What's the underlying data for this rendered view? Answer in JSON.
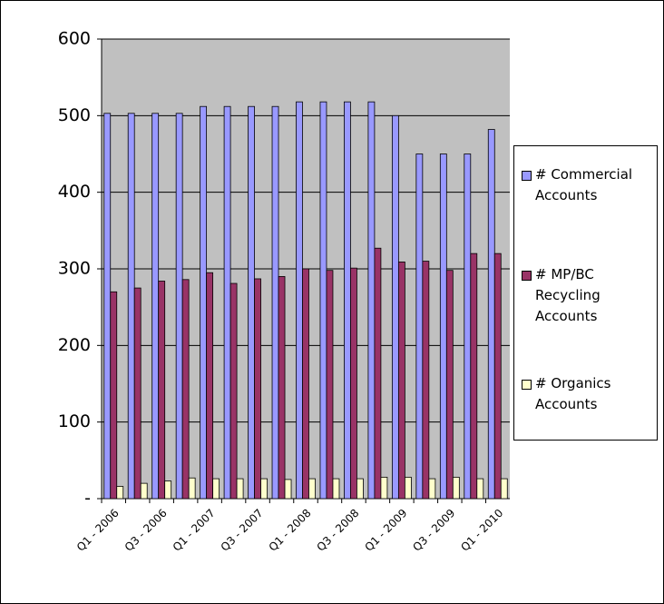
{
  "chart_data": {
    "type": "bar",
    "categories": [
      "Q1 - 2006",
      null,
      "Q3 - 2006",
      null,
      "Q1 - 2007",
      null,
      "Q3 - 2007",
      null,
      "Q1 - 2008",
      null,
      "Q3 - 2008",
      null,
      "Q1 - 2009",
      null,
      "Q3 - 2009",
      null,
      "Q1 - 2010"
    ],
    "series": [
      {
        "name": "# Commercial Accounts",
        "color": "#9999ff",
        "values": [
          503,
          503,
          503,
          503,
          512,
          512,
          512,
          512,
          518,
          518,
          518,
          518,
          500,
          450,
          450,
          450,
          482
        ]
      },
      {
        "name": "# MP/BC Recycling Accounts",
        "color": "#993366",
        "values": [
          270,
          275,
          284,
          286,
          295,
          281,
          287,
          290,
          300,
          298,
          301,
          327,
          309,
          310,
          298,
          320,
          320
        ]
      },
      {
        "name": "# Organics Accounts",
        "color": "#ffffcc",
        "values": [
          16,
          20,
          23,
          27,
          26,
          26,
          26,
          25,
          26,
          26,
          26,
          28,
          28,
          26,
          28,
          26,
          26
        ]
      }
    ],
    "ylim": [
      0,
      600
    ],
    "yticks": [
      {
        "value": 0,
        "label": "-"
      },
      100,
      200,
      300,
      400,
      500,
      600
    ],
    "grid": true
  }
}
